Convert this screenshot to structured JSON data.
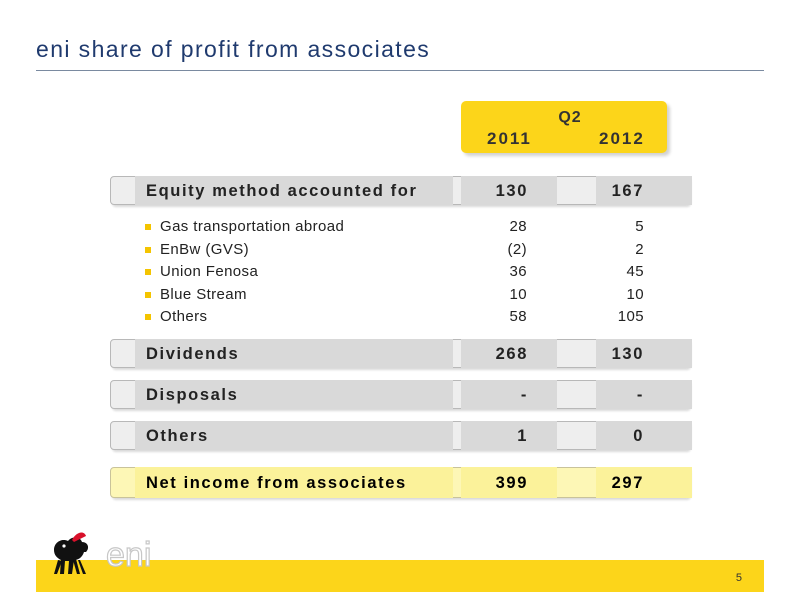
{
  "title": "eni share of profit from associates",
  "header": {
    "quarter": "Q2",
    "years": [
      "2011",
      "2012"
    ]
  },
  "rows": {
    "equity": {
      "label": "Equity method accounted for",
      "v2011": "130",
      "v2012": "167"
    },
    "subitems": [
      {
        "label": "Gas transportation abroad",
        "v2011": "28",
        "v2012": "5"
      },
      {
        "label": "EnBw (GVS)",
        "v2011": "(2)",
        "v2012": "2"
      },
      {
        "label": "Union Fenosa",
        "v2011": "36",
        "v2012": "45"
      },
      {
        "label": "Blue Stream",
        "v2011": "10",
        "v2012": "10"
      },
      {
        "label": "Others",
        "v2011": "58",
        "v2012": "105"
      }
    ],
    "dividends": {
      "label": "Dividends",
      "v2011": "268",
      "v2012": "130"
    },
    "disposals": {
      "label": "Disposals",
      "v2011": "-",
      "v2012": "-"
    },
    "others": {
      "label": "Others",
      "v2011": "1",
      "v2012": "0"
    },
    "net": {
      "label": "Net income from associates",
      "v2011": "399",
      "v2012": "297"
    }
  },
  "footer": {
    "page": "5",
    "logo_text": "eni"
  },
  "colors": {
    "accent": "#fcd51a",
    "title": "#1f3a6e",
    "net_band": "#fdf7b6"
  },
  "icons": {
    "logo": "six-legged-dog-icon"
  }
}
